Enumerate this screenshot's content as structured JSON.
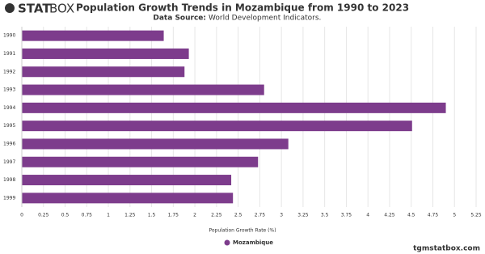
{
  "brand": {
    "bold": "STAT",
    "light": "BOX"
  },
  "footer": "tgmstatbox.com",
  "chart_data": {
    "type": "bar",
    "orientation": "horizontal",
    "title": "Population Growth Trends in Mozambique from 1990 to 2023",
    "subtitle_label": "Data Source:",
    "subtitle": "World Development Indicators.",
    "x_label": "Population Growth Rate (%)",
    "categories": [
      "1990",
      "1991",
      "1992",
      "1993",
      "1994",
      "1995",
      "1996",
      "1997",
      "1998",
      "1999"
    ],
    "series": [
      {
        "name": "Mozambique",
        "color": "#7d3c8c",
        "values": [
          1.64,
          1.93,
          1.88,
          2.8,
          4.9,
          4.51,
          3.08,
          2.73,
          2.42,
          2.44
        ]
      }
    ],
    "xlim": [
      0,
      5.25
    ],
    "xticks": [
      0,
      0.25,
      0.5,
      0.75,
      1,
      1.25,
      1.5,
      1.75,
      2,
      2.25,
      2.5,
      2.75,
      3,
      3.25,
      3.5,
      3.75,
      4,
      4.25,
      4.5,
      4.75,
      5,
      5.25
    ],
    "grid": true,
    "legend": "bottom"
  }
}
